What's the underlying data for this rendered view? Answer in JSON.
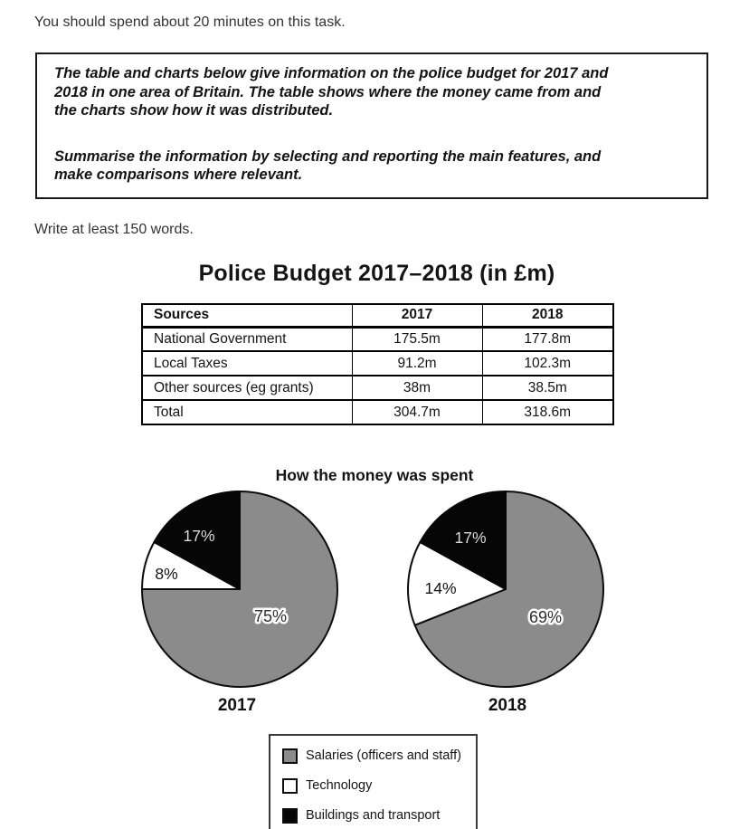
{
  "page": {
    "time_note": "You should spend about 20 minutes on this task.",
    "task_box": {
      "paragraph1": "The table and charts below give information on the police budget for 2017 and\n2018 in one area of Britain. The table shows where the money came from and\nthe charts show how it was distributed.",
      "paragraph2": "Summarise the information by selecting and reporting the main features, and\nmake comparisons where relevant."
    },
    "word_note": "Write at least 150 words."
  },
  "table_section": {
    "title": "Police Budget 2017–2018 (in £m)",
    "columns": [
      "Sources",
      "2017",
      "2018"
    ],
    "rows": [
      [
        "National Government",
        "175.5m",
        "177.8m"
      ],
      [
        "Local Taxes",
        "91.2m",
        "102.3m"
      ],
      [
        "Other sources (eg grants)",
        "38m",
        "38.5m"
      ],
      [
        "Total",
        "304.7m",
        "318.6m"
      ]
    ]
  },
  "chart_data": {
    "type": "pie",
    "title": "How the money was spent",
    "categories": [
      "Salaries (officers and staff)",
      "Technology",
      "Buildings and transport"
    ],
    "series": [
      {
        "name": "2017",
        "values": [
          75,
          8,
          17
        ],
        "labels": [
          "75%",
          "8%",
          "17%"
        ]
      },
      {
        "name": "2018",
        "values": [
          69,
          14,
          17
        ],
        "labels": [
          "69%",
          "14%",
          "17%"
        ]
      }
    ],
    "colors": {
      "salaries": "#8b8b8b",
      "technology": "#ffffff",
      "buildings": "#060606"
    },
    "legend_position": "bottom",
    "legend_items": [
      {
        "label": "Salaries (officers and staff)",
        "color": "#8b8b8b"
      },
      {
        "label": "Technology",
        "color": "#ffffff"
      },
      {
        "label": "Buildings and transport",
        "color": "#060606"
      }
    ]
  }
}
